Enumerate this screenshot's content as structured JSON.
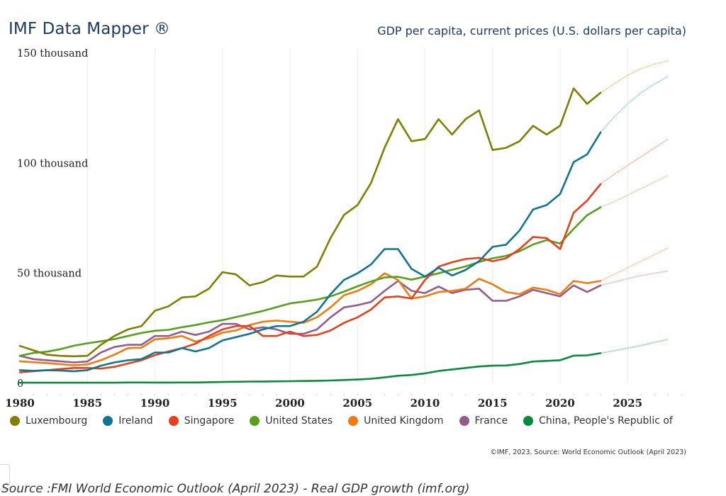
{
  "header": {
    "brand": "IMF Data Mapper ®",
    "chart_title": "GDP per capita, current prices (U.S. dollars per capita)"
  },
  "footer": {
    "credit": "©IMF, 2023, Source: World Economic Outlook (April 2023)",
    "source_caption": "Source :FMI World Economic Outlook (April 2023) - Real GDP growth (imf.org)",
    "corner_glyph": "‹"
  },
  "chart_data": {
    "type": "line",
    "title": "GDP per capita, current prices (U.S. dollars per capita)",
    "xlabel": "",
    "ylabel": "",
    "x_range": [
      1980,
      2029
    ],
    "ylim": [
      0,
      150000
    ],
    "grid": "vertical",
    "legend_position": "bottom",
    "projection_start": 2023,
    "x_ticks": [
      1980,
      1985,
      1990,
      1995,
      2000,
      2005,
      2010,
      2015,
      2020,
      2025
    ],
    "x_tick_labels": [
      "1980",
      "1985",
      "1990",
      "1995",
      "2000",
      "2005",
      "2010",
      "2015",
      "2020",
      "2025"
    ],
    "y_ticks": [
      0,
      50000,
      100000,
      150000
    ],
    "y_tick_labels": [
      "0",
      "50 thousand",
      "100 thousand",
      "150 thousand"
    ],
    "years": [
      1980,
      1981,
      1982,
      1983,
      1984,
      1985,
      1986,
      1987,
      1988,
      1989,
      1990,
      1991,
      1992,
      1993,
      1994,
      1995,
      1996,
      1997,
      1998,
      1999,
      2000,
      2001,
      2002,
      2003,
      2004,
      2005,
      2006,
      2007,
      2008,
      2009,
      2010,
      2011,
      2012,
      2013,
      2014,
      2015,
      2016,
      2017,
      2018,
      2019,
      2020,
      2021,
      2022,
      2023,
      2024,
      2025,
      2026,
      2027,
      2028
    ],
    "series": [
      {
        "name": "Luxembourg",
        "color": "#7f7f00",
        "projection_color": "#d6d68a",
        "values": [
          17000,
          15000,
          13000,
          12500,
          12300,
          12500,
          17500,
          21500,
          24500,
          26000,
          33000,
          35000,
          39000,
          39500,
          43000,
          50500,
          49500,
          44500,
          46000,
          49000,
          48500,
          48500,
          53000,
          66000,
          76500,
          81000,
          91000,
          107000,
          120000,
          110000,
          111000,
          120000,
          113000,
          120000,
          124000,
          106000,
          107000,
          110000,
          117000,
          113000,
          117000,
          134000,
          127000,
          132000,
          136000,
          140000,
          143000,
          145000,
          146500
        ]
      },
      {
        "name": "Ireland",
        "color": "#0f7590",
        "projection_color": "#9ccfdf",
        "values": [
          6000,
          5700,
          6000,
          5800,
          5500,
          6000,
          8000,
          9500,
          10500,
          11000,
          14000,
          14000,
          16000,
          14500,
          16000,
          19500,
          21000,
          22500,
          24500,
          26000,
          26000,
          28000,
          32500,
          40500,
          47000,
          50000,
          54000,
          61000,
          61000,
          52000,
          48500,
          52500,
          49000,
          51500,
          55500,
          62000,
          63000,
          69500,
          79000,
          81000,
          86000,
          100500,
          104000,
          114000,
          121000,
          127000,
          132000,
          136000,
          139500
        ]
      },
      {
        "name": "Singapore",
        "color": "#e8401c",
        "projection_color": "#f7b3a6",
        "values": [
          5000,
          5500,
          6000,
          6500,
          7000,
          7000,
          6700,
          7500,
          9000,
          10500,
          12800,
          14500,
          16000,
          18000,
          21500,
          24500,
          26000,
          26000,
          21500,
          21500,
          23500,
          21500,
          22000,
          24000,
          27500,
          30000,
          33500,
          39000,
          39500,
          38500,
          47000,
          53000,
          55000,
          56500,
          57000,
          55500,
          56800,
          61000,
          66500,
          66000,
          61000,
          77500,
          83000,
          90500,
          95000,
          99000,
          103000,
          107000,
          111000
        ]
      },
      {
        "name": "United States",
        "color": "#57a01b",
        "projection_color": "#bfe0a3",
        "values": [
          12500,
          13800,
          14400,
          15500,
          17100,
          18200,
          19100,
          20100,
          21500,
          22900,
          23900,
          24300,
          25500,
          26500,
          27700,
          28700,
          30100,
          31500,
          32900,
          34600,
          36300,
          37100,
          38000,
          39500,
          41700,
          44100,
          46300,
          48100,
          48400,
          47100,
          48500,
          50000,
          51600,
          53100,
          55100,
          56800,
          57900,
          60000,
          63100,
          65100,
          63500,
          70200,
          76400,
          80000,
          82500,
          85500,
          88500,
          91500,
          94500
        ]
      },
      {
        "name": "United Kingdom",
        "color": "#f07a0c",
        "projection_color": "#f9c697",
        "values": [
          10000,
          9600,
          9200,
          8700,
          8200,
          8600,
          10500,
          13000,
          16000,
          16200,
          20000,
          20500,
          21500,
          19000,
          20500,
          23000,
          24000,
          26500,
          28000,
          28500,
          28000,
          27500,
          30000,
          34500,
          40000,
          42000,
          45000,
          50000,
          47000,
          38500,
          39500,
          41500,
          42000,
          43000,
          47500,
          45000,
          41500,
          40500,
          43500,
          42500,
          40500,
          46500,
          45500,
          46500,
          49500,
          52500,
          55500,
          58500,
          61500
        ]
      },
      {
        "name": "France",
        "color": "#955b8c",
        "projection_color": "#d5b9d0",
        "values": [
          12500,
          11000,
          10500,
          10000,
          9500,
          9900,
          14000,
          16500,
          17500,
          17500,
          21500,
          21500,
          23500,
          22000,
          23500,
          27000,
          27000,
          24500,
          25500,
          24500,
          22500,
          22500,
          24500,
          30000,
          34500,
          35500,
          37000,
          42000,
          46500,
          42000,
          41000,
          44000,
          41000,
          42500,
          43000,
          37500,
          37500,
          39500,
          42500,
          41000,
          39500,
          44500,
          41500,
          44500,
          46000,
          47500,
          49000,
          50000,
          51000
        ]
      },
      {
        "name": "China, People's Republic of",
        "color": "#0a8a3c",
        "projection_color": "#8fd1a8",
        "values": [
          300,
          300,
          300,
          300,
          300,
          300,
          300,
          300,
          400,
          400,
          350,
          350,
          400,
          400,
          500,
          600,
          700,
          800,
          850,
          900,
          950,
          1050,
          1150,
          1300,
          1500,
          1750,
          2100,
          2700,
          3450,
          3800,
          4550,
          5600,
          6300,
          7000,
          7650,
          8000,
          8100,
          8800,
          9900,
          10200,
          10500,
          12600,
          12700,
          13700,
          14800,
          16000,
          17200,
          18600,
          20000
        ]
      }
    ]
  }
}
